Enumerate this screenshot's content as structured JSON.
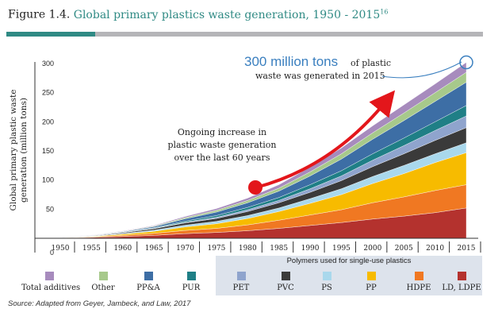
{
  "figure": {
    "number": "Figure 1.4.",
    "title": "Global primary plastics waste generation, 1950 - 2015",
    "footnote": "16"
  },
  "source": "Source:  Adapted from Geyer, Jambeck, and Law, 2017",
  "legend": {
    "header": "Polymers used for single-use plastics",
    "items": [
      {
        "label": "Total additives",
        "color": "#a78bbd"
      },
      {
        "label": "Other",
        "color": "#a7c98b"
      },
      {
        "label": "PP&A",
        "color": "#3d6ea5"
      },
      {
        "label": "PUR",
        "color": "#1f7f86"
      },
      {
        "label": "PET",
        "color": "#8fa4cd"
      },
      {
        "label": "PVC",
        "color": "#3a3a3a"
      },
      {
        "label": "PS",
        "color": "#a9d8ec"
      },
      {
        "label": "PP",
        "color": "#f7bb00"
      },
      {
        "label": "HDPE",
        "color": "#f07822"
      },
      {
        "label": "LD, LDPE",
        "color": "#b4322e"
      }
    ]
  },
  "annotations": {
    "highlight_big": "300 million tons",
    "highlight_small": "of plastic",
    "highlight_line2": "waste was generated in 2015",
    "trend_line1": "Ongoing increase in",
    "trend_line2": "plastic waste generation",
    "trend_line3": "over the last 60 years",
    "arrow_color": "#e3161b"
  },
  "chart_data": {
    "type": "area",
    "stacked": true,
    "title": "Global primary plastics waste generation, 1950 - 2015",
    "xlabel": "",
    "ylabel": "Global primary plastic waste generation (million tons)",
    "xlim": [
      1950,
      2015
    ],
    "ylim": [
      0,
      320
    ],
    "x_ticks": [
      1950,
      1955,
      1960,
      1965,
      1970,
      1975,
      1980,
      1985,
      1990,
      1995,
      2000,
      2005,
      2010,
      2015
    ],
    "y_ticks": [
      0,
      50,
      100,
      150,
      200,
      250,
      300
    ],
    "x": [
      1950,
      1955,
      1960,
      1965,
      1970,
      1975,
      1980,
      1985,
      1990,
      1995,
      2000,
      2005,
      2010,
      2015
    ],
    "series": [
      {
        "name": "LD, LDPE",
        "values": [
          0.5,
          1.5,
          3,
          5,
          8,
          10,
          13,
          17,
          22,
          27,
          33,
          38,
          44,
          52
        ]
      },
      {
        "name": "HDPE",
        "values": [
          0.3,
          0.8,
          2,
          3.5,
          5.5,
          7,
          10,
          14,
          18,
          22,
          28,
          33,
          38,
          40
        ]
      },
      {
        "name": "PP",
        "values": [
          0.2,
          0.7,
          2,
          3.5,
          6,
          8,
          11,
          15,
          20,
          26,
          33,
          40,
          48,
          55
        ]
      },
      {
        "name": "PS",
        "values": [
          0.1,
          0.4,
          1,
          2,
          3,
          4,
          5,
          6,
          8,
          10,
          12,
          14,
          15,
          17
        ]
      },
      {
        "name": "PVC",
        "values": [
          0.2,
          0.6,
          1.5,
          2.5,
          4,
          5,
          7,
          9,
          11,
          14,
          17,
          20,
          23,
          26
        ]
      },
      {
        "name": "PET",
        "values": [
          0,
          0.1,
          0.2,
          0.5,
          1,
          2,
          3,
          4,
          6,
          8,
          11,
          14,
          17,
          20
        ]
      },
      {
        "name": "PUR",
        "values": [
          0,
          0.2,
          0.5,
          1,
          2,
          3,
          4,
          5,
          7,
          9,
          11,
          13,
          15,
          18
        ]
      },
      {
        "name": "PP&A",
        "values": [
          0.2,
          0.5,
          1,
          2,
          4,
          6,
          8,
          11,
          15,
          20,
          25,
          30,
          35,
          40
        ]
      },
      {
        "name": "Other",
        "values": [
          0.1,
          0.3,
          0.6,
          1,
          2,
          3,
          4,
          5,
          7,
          9,
          11,
          13,
          15,
          17
        ]
      },
      {
        "name": "Total additives",
        "values": [
          0.1,
          0.3,
          0.7,
          1,
          2,
          3,
          4,
          6,
          8,
          10,
          12,
          14,
          15,
          17
        ]
      }
    ],
    "annotation_point": {
      "x": 2015,
      "y": 302
    }
  }
}
